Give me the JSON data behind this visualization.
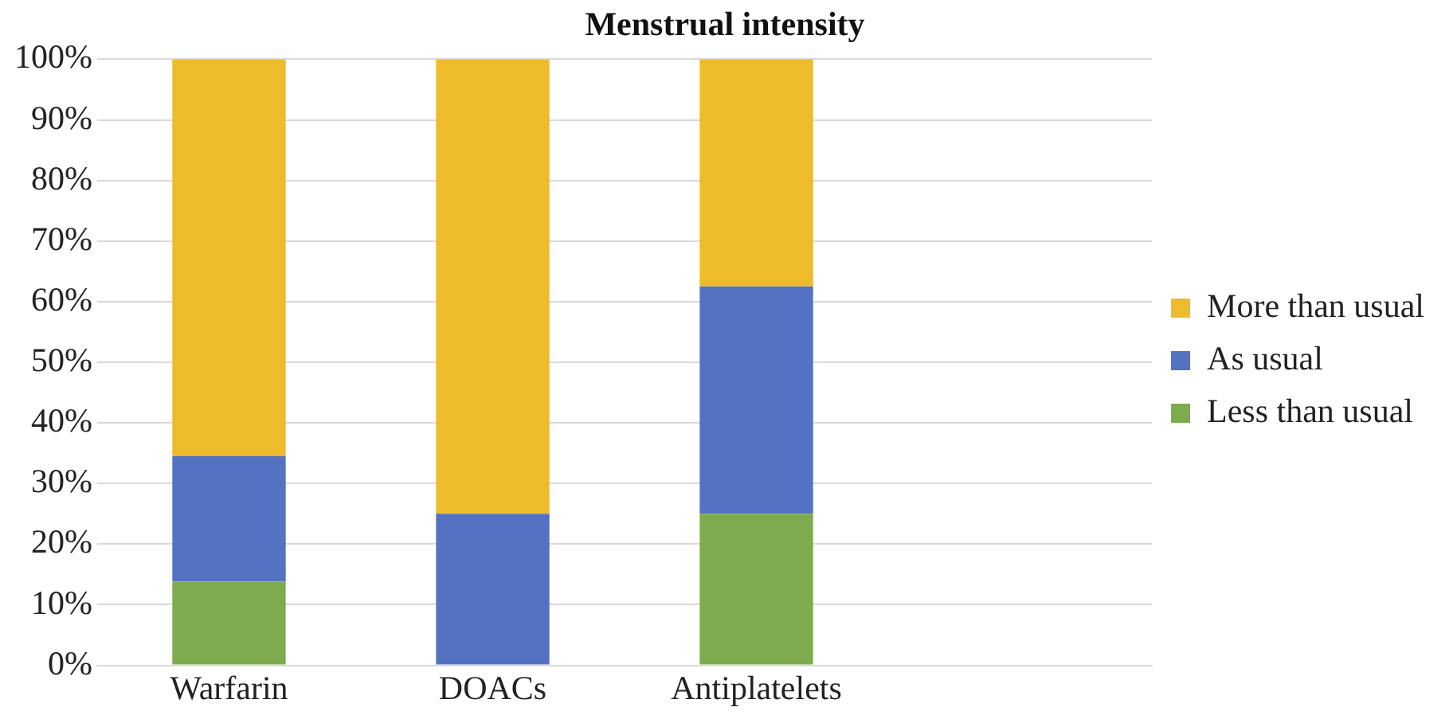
{
  "chart_data": {
    "type": "bar",
    "title": "Menstrual intensity",
    "stacked": true,
    "categories": [
      "Warfarin",
      "DOACs",
      "Antiplatelets",
      null
    ],
    "series": [
      {
        "name": "Less than usual",
        "color": "#7eab4e",
        "values": [
          13.8,
          0,
          25,
          null
        ]
      },
      {
        "name": "As usual",
        "color": "#5472c2",
        "values": [
          20.7,
          25,
          37.5,
          null
        ]
      },
      {
        "name": "More than usual",
        "color": "#edbb2c",
        "values": [
          65.5,
          75,
          37.5,
          null
        ]
      }
    ],
    "ylim": [
      0,
      100
    ],
    "yticks": [
      {
        "value": 0,
        "label": "0%"
      },
      {
        "value": 10,
        "label": "10%"
      },
      {
        "value": 20,
        "label": "20%"
      },
      {
        "value": 30,
        "label": "30%"
      },
      {
        "value": 40,
        "label": "40%"
      },
      {
        "value": 50,
        "label": "50%"
      },
      {
        "value": 60,
        "label": "60%"
      },
      {
        "value": 70,
        "label": "70%"
      },
      {
        "value": 80,
        "label": "80%"
      },
      {
        "value": 90,
        "label": "90%"
      },
      {
        "value": 100,
        "label": "100%"
      }
    ],
    "grid": "y",
    "legend": "right"
  }
}
